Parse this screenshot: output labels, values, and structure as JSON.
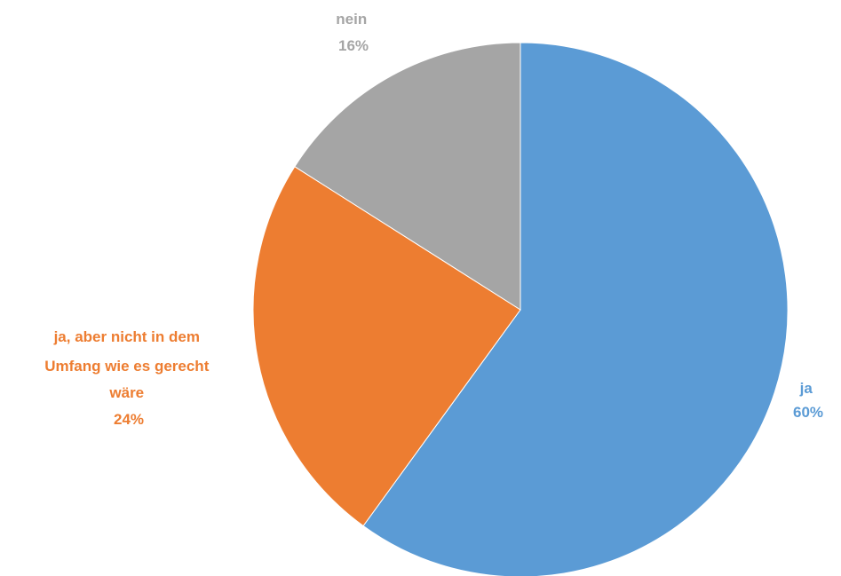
{
  "chart_data": {
    "type": "pie",
    "title": "",
    "slices": [
      {
        "label": "ja",
        "value": 60,
        "value_label": "60%",
        "color": "#5b9bd5"
      },
      {
        "label": "ja, aber nicht in dem Umfang wie es gerecht wäre",
        "value": 24,
        "value_label": "24%",
        "color": "#ed7d31"
      },
      {
        "label": "nein",
        "value": 16,
        "value_label": "16%",
        "color": "#a5a5a5"
      }
    ],
    "start": "12 o'clock",
    "direction": "clockwise",
    "data_labels": "outside, category name and percentage",
    "legend": "none"
  }
}
